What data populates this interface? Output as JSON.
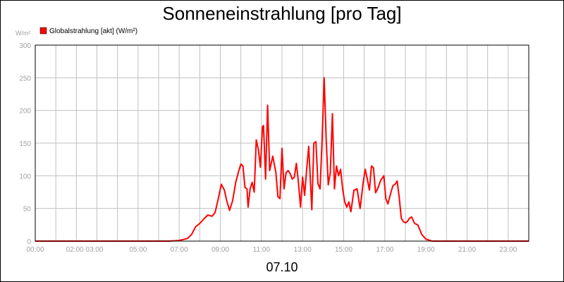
{
  "chart_data": {
    "type": "line",
    "title": "Sonneneinstrahlung [pro Tag]",
    "ylabel": "W/m²",
    "xlabel": "07.10",
    "ylim": [
      0,
      300
    ],
    "xlim": [
      0,
      24
    ],
    "grid": true,
    "legend_position": "top-left",
    "y_ticks": [
      0,
      50,
      100,
      150,
      200,
      250,
      300
    ],
    "x_ticks": [
      {
        "x": 0,
        "label": "00:00"
      },
      {
        "x": 2.4,
        "label": "02:00 03:00"
      },
      {
        "x": 5,
        "label": "05:00"
      },
      {
        "x": 7,
        "label": "07:00"
      },
      {
        "x": 9,
        "label": "09:00"
      },
      {
        "x": 11,
        "label": "11:00"
      },
      {
        "x": 13,
        "label": "13:00"
      },
      {
        "x": 15,
        "label": "15:00"
      },
      {
        "x": 17,
        "label": "17:00"
      },
      {
        "x": 19,
        "label": "19:00"
      },
      {
        "x": 21,
        "label": "21:00"
      },
      {
        "x": 23,
        "label": "23:00"
      }
    ],
    "grid_x": [
      0,
      1,
      2,
      3,
      4,
      5,
      6,
      7,
      8,
      9,
      10,
      11,
      12,
      13,
      14,
      15,
      16,
      17,
      18,
      19,
      20,
      21,
      22,
      23,
      24
    ],
    "series": [
      {
        "name": "Globalstrahlung [akt] (W/m²)",
        "color": "#ff0000",
        "x": [
          0,
          6.5,
          7.0,
          7.4,
          7.6,
          7.8,
          8.0,
          8.2,
          8.4,
          8.6,
          8.75,
          8.9,
          9.05,
          9.2,
          9.3,
          9.45,
          9.6,
          9.75,
          9.9,
          10.0,
          10.1,
          10.2,
          10.3,
          10.35,
          10.45,
          10.55,
          10.65,
          10.75,
          10.85,
          10.95,
          11.05,
          11.1,
          11.2,
          11.3,
          11.4,
          11.55,
          11.7,
          11.8,
          11.9,
          12.0,
          12.1,
          12.2,
          12.3,
          12.4,
          12.5,
          12.6,
          12.7,
          12.8,
          12.9,
          13.0,
          13.1,
          13.2,
          13.3,
          13.45,
          13.55,
          13.65,
          13.75,
          13.85,
          13.95,
          14.05,
          14.15,
          14.25,
          14.35,
          14.45,
          14.55,
          14.65,
          14.75,
          14.85,
          14.95,
          15.05,
          15.15,
          15.25,
          15.35,
          15.5,
          15.65,
          15.8,
          15.95,
          16.05,
          16.15,
          16.25,
          16.35,
          16.45,
          16.55,
          16.65,
          16.8,
          16.95,
          17.05,
          17.15,
          17.3,
          17.4,
          17.5,
          17.6,
          17.7,
          17.8,
          17.9,
          18.0,
          18.1,
          18.2,
          18.3,
          18.45,
          18.6,
          18.8,
          19.0,
          19.3,
          24.0
        ],
        "values": [
          0,
          0,
          1,
          4,
          10,
          22,
          27,
          34,
          40,
          38,
          44,
          65,
          87,
          78,
          63,
          47,
          62,
          90,
          108,
          118,
          115,
          82,
          80,
          52,
          80,
          90,
          75,
          155,
          140,
          113,
          175,
          177,
          95,
          208,
          108,
          130,
          105,
          68,
          65,
          142,
          80,
          105,
          108,
          103,
          95,
          98,
          119,
          90,
          52,
          98,
          70,
          110,
          145,
          48,
          150,
          152,
          88,
          80,
          155,
          250,
          155,
          86,
          105,
          195,
          80,
          115,
          100,
          110,
          80,
          60,
          52,
          60,
          45,
          78,
          80,
          50,
          90,
          110,
          95,
          78,
          115,
          112,
          74,
          80,
          93,
          100,
          65,
          57,
          75,
          85,
          87,
          92,
          67,
          35,
          30,
          28,
          30,
          35,
          37,
          27,
          25,
          10,
          3,
          0,
          0
        ]
      }
    ]
  }
}
